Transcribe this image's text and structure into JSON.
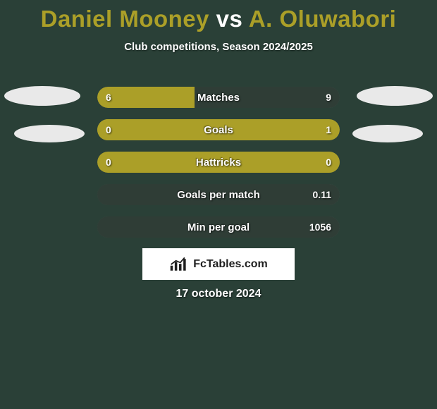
{
  "title": {
    "player1": "Daniel Mooney",
    "vs": "vs",
    "player2": "A. Oluwabori"
  },
  "subtitle": "Club competitions, Season 2024/2025",
  "colors": {
    "bar_left": "#ab9f28",
    "bar_right_dark": "#2f3d36",
    "bar_right_fill": "#ab9f28",
    "background": "#2a4037"
  },
  "bars": [
    {
      "label": "Matches",
      "left_val": "6",
      "right_val": "9",
      "left_pct": 40,
      "right_color": "#2f3d36"
    },
    {
      "label": "Goals",
      "left_val": "0",
      "right_val": "1",
      "left_pct": 22,
      "right_color": "#ab9f28"
    },
    {
      "label": "Hattricks",
      "left_val": "0",
      "right_val": "0",
      "left_pct": 100,
      "right_color": "#2f3d36"
    },
    {
      "label": "Goals per match",
      "left_val": "",
      "right_val": "0.11",
      "left_pct": 0,
      "right_color": "#2f3d36"
    },
    {
      "label": "Min per goal",
      "left_val": "",
      "right_val": "1056",
      "left_pct": 0,
      "right_color": "#2f3d36"
    }
  ],
  "footer_brand": "FcTables.com",
  "date": "17 october 2024"
}
